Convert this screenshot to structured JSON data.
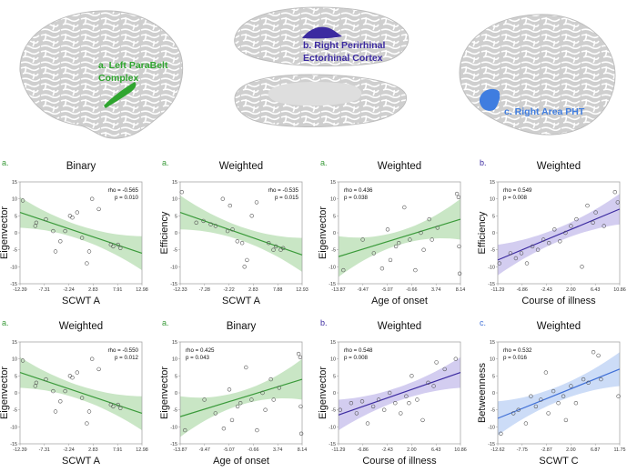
{
  "colors": {
    "green": "#3a9a3a",
    "green_band": "#c9e6c5",
    "purple": "#3b2aa0",
    "purple_band": "#d3cdf0",
    "blue": "#3f6fd6",
    "blue_band": "#ccdcf7",
    "brain": "#cfcfcf",
    "gyri": "#ffffff"
  },
  "regions": [
    {
      "label_line1": "a. Left ParaBelt",
      "label_line2": "Complex",
      "color": "#2fa52f"
    },
    {
      "label_line1": "b. Right Perirhinal",
      "label_line2": "Ectorhinal Cortex",
      "color": "#3b2aa0"
    },
    {
      "label_line1": "c. Right Area PHT",
      "label_line2": "",
      "color": "#3f7de0"
    }
  ],
  "chart_data": [
    {
      "type": "scatter",
      "letter": "a.",
      "color_key": "green",
      "title": "Binary",
      "ylabel": "Eigenvector",
      "xlabel": "SCWT A",
      "x_ticks": [
        "-12.39",
        "-7.31",
        "-2.24",
        "2.83",
        "7.91",
        "12.98"
      ],
      "xlim": [
        -12.39,
        12.98
      ],
      "y_ticks": [
        "15",
        "10",
        "5",
        "0",
        "-5",
        "-10",
        "-15"
      ],
      "ylim": [
        -15,
        15
      ],
      "stat_rho": "rho = -0.565",
      "stat_p": "p = 0.010",
      "stat_pos": "top-right",
      "fit": {
        "y_start": 6.0,
        "y_end": -6.0,
        "band_start": 4.5,
        "band_mid": 2.0,
        "band_end": 5.0
      },
      "points": [
        [
          -11.8,
          9.5
        ],
        [
          -9.2,
          2.0
        ],
        [
          -9.0,
          3.0
        ],
        [
          -7.0,
          4.0
        ],
        [
          -5.5,
          0.5
        ],
        [
          -5.0,
          -5.5
        ],
        [
          -4.0,
          -2.5
        ],
        [
          -3.0,
          0.5
        ],
        [
          -2.0,
          5.0
        ],
        [
          -1.5,
          4.5
        ],
        [
          -0.5,
          6.0
        ],
        [
          0.5,
          -1.5
        ],
        [
          1.5,
          -9.0
        ],
        [
          2.0,
          -5.5
        ],
        [
          2.6,
          10.0
        ],
        [
          4.0,
          7.0
        ],
        [
          6.5,
          -3.5
        ],
        [
          7.0,
          -4.0
        ],
        [
          8.0,
          -3.5
        ],
        [
          8.5,
          -4.5
        ]
      ]
    },
    {
      "type": "scatter",
      "letter": "a.",
      "color_key": "green",
      "title": "Weighted",
      "ylabel": "Efficiency",
      "xlabel": "SCWT A",
      "x_ticks": [
        "-12.33",
        "-7.28",
        "-2.22",
        "2.83",
        "7.88",
        "12.93"
      ],
      "xlim": [
        -12.33,
        12.93
      ],
      "y_ticks": [
        "15",
        "10",
        "5",
        "0",
        "-5",
        "-10",
        "-15"
      ],
      "ylim": [
        -15,
        15
      ],
      "stat_rho": "rho = -0.535",
      "stat_p": "p = 0.015",
      "stat_pos": "top-right",
      "fit": {
        "y_start": 6.0,
        "y_end": -6.5,
        "band_start": 5.0,
        "band_mid": 2.0,
        "band_end": 5.0
      },
      "points": [
        [
          -12.0,
          12.0
        ],
        [
          -9.0,
          3.0
        ],
        [
          -7.5,
          3.5
        ],
        [
          -6.0,
          2.5
        ],
        [
          -5.0,
          2.0
        ],
        [
          -3.5,
          10.0
        ],
        [
          -2.5,
          0.5
        ],
        [
          -2.0,
          8.0
        ],
        [
          -1.5,
          1.0
        ],
        [
          -0.5,
          -2.5
        ],
        [
          0.5,
          -3.0
        ],
        [
          1.0,
          -10.0
        ],
        [
          1.5,
          -8.0
        ],
        [
          2.5,
          5.0
        ],
        [
          3.5,
          9.0
        ],
        [
          6.0,
          -3.0
        ],
        [
          7.0,
          -5.0
        ],
        [
          7.5,
          -4.0
        ],
        [
          8.5,
          -5.0
        ],
        [
          9.0,
          -4.5
        ]
      ]
    },
    {
      "type": "scatter",
      "letter": "a.",
      "color_key": "green",
      "title": "Weighted",
      "ylabel": "Eigenvector",
      "xlabel": "Age of onset",
      "x_ticks": [
        "-13.87",
        "-9.47",
        "-5.07",
        "-0.66",
        "3.74",
        "8.14"
      ],
      "xlim": [
        -13.87,
        8.14
      ],
      "y_ticks": [
        "15",
        "10",
        "5",
        "0",
        "-5",
        "-10",
        "-15"
      ],
      "ylim": [
        -15,
        15
      ],
      "stat_rho": "rho = 0.436",
      "stat_p": "p = 0.038",
      "stat_pos": "top-left",
      "fit": {
        "y_start": -7.0,
        "y_end": 4.0,
        "band_start": 6.0,
        "band_mid": 2.0,
        "band_end": 6.0
      },
      "points": [
        [
          -13.0,
          -11.0
        ],
        [
          -9.5,
          -2.0
        ],
        [
          -7.5,
          -6.0
        ],
        [
          -6.0,
          -10.5
        ],
        [
          -5.0,
          1.0
        ],
        [
          -4.5,
          -8.0
        ],
        [
          -3.5,
          -4.0
        ],
        [
          -3.0,
          -3.0
        ],
        [
          -2.0,
          7.5
        ],
        [
          -1.0,
          -2.0
        ],
        [
          0.0,
          -11.0
        ],
        [
          1.0,
          0.0
        ],
        [
          1.5,
          -5.0
        ],
        [
          2.5,
          4.0
        ],
        [
          3.0,
          -2.0
        ],
        [
          4.0,
          1.5
        ],
        [
          7.5,
          11.5
        ],
        [
          7.8,
          10.5
        ],
        [
          7.9,
          -4.0
        ],
        [
          8.0,
          -12.0
        ]
      ]
    },
    {
      "type": "scatter",
      "letter": "b.",
      "color_key": "purple",
      "title": "Weighted",
      "ylabel": "Efficiency",
      "xlabel": "Course of illness",
      "x_ticks": [
        "-11.29",
        "-6.86",
        "-2.43",
        "2.00",
        "6.43",
        "10.86"
      ],
      "xlim": [
        -11.29,
        10.86
      ],
      "y_ticks": [
        "15",
        "10",
        "5",
        "0",
        "-5",
        "-10",
        "-15"
      ],
      "ylim": [
        -15,
        15
      ],
      "stat_rho": "rho = 0.549",
      "stat_p": "p = 0.008",
      "stat_pos": "top-left",
      "fit": {
        "y_start": -8.0,
        "y_end": 7.0,
        "band_start": 4.5,
        "band_mid": 2.0,
        "band_end": 4.5
      },
      "points": [
        [
          -11.0,
          -9.0
        ],
        [
          -9.0,
          -6.0
        ],
        [
          -8.0,
          -7.5
        ],
        [
          -7.0,
          -6.0
        ],
        [
          -6.0,
          -9.0
        ],
        [
          -5.0,
          -4.0
        ],
        [
          -4.0,
          -5.0
        ],
        [
          -3.0,
          -2.0
        ],
        [
          -2.0,
          -3.0
        ],
        [
          -1.0,
          1.0
        ],
        [
          0.0,
          -2.5
        ],
        [
          1.0,
          0.0
        ],
        [
          2.0,
          2.0
        ],
        [
          3.0,
          4.0
        ],
        [
          4.0,
          -10.0
        ],
        [
          5.0,
          8.0
        ],
        [
          6.0,
          3.0
        ],
        [
          6.5,
          6.0
        ],
        [
          8.0,
          2.0
        ],
        [
          10.0,
          12.0
        ],
        [
          10.5,
          9.0
        ]
      ]
    },
    {
      "type": "scatter",
      "letter": "a.",
      "color_key": "green",
      "title": "Weighted",
      "ylabel": "Eigenvector",
      "xlabel": "SCWT A",
      "x_ticks": [
        "-12.39",
        "-7.31",
        "-2.24",
        "2.83",
        "7.91",
        "12.98"
      ],
      "xlim": [
        -12.39,
        12.98
      ],
      "y_ticks": [
        "15",
        "10",
        "5",
        "0",
        "-5",
        "-10",
        "-15"
      ],
      "ylim": [
        -15,
        15
      ],
      "stat_rho": "rho = -0.550",
      "stat_p": "p = 0.012",
      "stat_pos": "top-right",
      "fit": {
        "y_start": 6.0,
        "y_end": -6.0,
        "band_start": 4.5,
        "band_mid": 2.0,
        "band_end": 5.0
      },
      "points": [
        [
          -11.8,
          9.5
        ],
        [
          -9.2,
          2.0
        ],
        [
          -9.0,
          3.0
        ],
        [
          -7.0,
          4.0
        ],
        [
          -5.5,
          0.5
        ],
        [
          -5.0,
          -5.5
        ],
        [
          -4.0,
          -2.5
        ],
        [
          -3.0,
          0.5
        ],
        [
          -2.0,
          5.0
        ],
        [
          -1.5,
          4.5
        ],
        [
          -0.5,
          6.0
        ],
        [
          0.5,
          -1.5
        ],
        [
          1.5,
          -9.0
        ],
        [
          2.0,
          -5.5
        ],
        [
          2.6,
          10.0
        ],
        [
          4.0,
          7.0
        ],
        [
          6.5,
          -3.5
        ],
        [
          7.0,
          -4.0
        ],
        [
          8.0,
          -3.5
        ],
        [
          8.5,
          -4.5
        ]
      ]
    },
    {
      "type": "scatter",
      "letter": "a.",
      "color_key": "green",
      "title": "Binary",
      "ylabel": "Eigenvector",
      "xlabel": "Age of onset",
      "x_ticks": [
        "-13.87",
        "-9.47",
        "-5.07",
        "-0.66",
        "3.74",
        "8.14"
      ],
      "xlim": [
        -13.87,
        8.14
      ],
      "y_ticks": [
        "15",
        "10",
        "5",
        "0",
        "-5",
        "-10",
        "-15"
      ],
      "ylim": [
        -15,
        15
      ],
      "stat_rho": "rho = 0.425",
      "stat_p": "p = 0.043",
      "stat_pos": "top-left",
      "fit": {
        "y_start": -7.0,
        "y_end": 4.0,
        "band_start": 6.0,
        "band_mid": 2.0,
        "band_end": 6.0
      },
      "points": [
        [
          -13.0,
          -11.0
        ],
        [
          -9.5,
          -2.0
        ],
        [
          -7.5,
          -6.0
        ],
        [
          -6.0,
          -10.5
        ],
        [
          -5.0,
          1.0
        ],
        [
          -4.5,
          -8.0
        ],
        [
          -3.5,
          -4.0
        ],
        [
          -3.0,
          -3.0
        ],
        [
          -2.0,
          7.5
        ],
        [
          -1.0,
          -2.0
        ],
        [
          0.0,
          -11.0
        ],
        [
          1.0,
          0.0
        ],
        [
          1.5,
          -5.0
        ],
        [
          2.5,
          4.0
        ],
        [
          3.0,
          -2.0
        ],
        [
          4.0,
          1.5
        ],
        [
          7.5,
          11.5
        ],
        [
          7.8,
          10.5
        ],
        [
          7.9,
          -4.0
        ],
        [
          8.0,
          -12.0
        ]
      ]
    },
    {
      "type": "scatter",
      "letter": "b.",
      "color_key": "purple",
      "title": "Weighted",
      "ylabel": "Eigenvector",
      "xlabel": "Course of illness",
      "x_ticks": [
        "-11.29",
        "-6.86",
        "-2.43",
        "2.00",
        "6.43",
        "10.86"
      ],
      "xlim": [
        -11.29,
        10.86
      ],
      "y_ticks": [
        "15",
        "10",
        "5",
        "0",
        "-5",
        "-10",
        "-15"
      ],
      "ylim": [
        -15,
        15
      ],
      "stat_rho": "rho = 0.548",
      "stat_p": "p = 0.008",
      "stat_pos": "top-left",
      "fit": {
        "y_start": -6.5,
        "y_end": 6.0,
        "band_start": 4.5,
        "band_mid": 2.0,
        "band_end": 4.5
      },
      "points": [
        [
          -11.0,
          -5.0
        ],
        [
          -9.0,
          -3.0
        ],
        [
          -8.0,
          -6.0
        ],
        [
          -7.0,
          -2.5
        ],
        [
          -6.0,
          -9.0
        ],
        [
          -5.0,
          -4.0
        ],
        [
          -4.0,
          -2.0
        ],
        [
          -3.0,
          -5.0
        ],
        [
          -2.0,
          0.0
        ],
        [
          -1.0,
          -3.0
        ],
        [
          0.0,
          -6.0
        ],
        [
          1.0,
          -1.0
        ],
        [
          1.5,
          -3.0
        ],
        [
          2.0,
          5.0
        ],
        [
          3.0,
          -2.0
        ],
        [
          4.0,
          -8.0
        ],
        [
          5.0,
          3.0
        ],
        [
          6.0,
          2.0
        ],
        [
          6.5,
          9.0
        ],
        [
          8.0,
          7.0
        ],
        [
          10.0,
          10.0
        ]
      ]
    },
    {
      "type": "scatter",
      "letter": "c.",
      "color_key": "blue",
      "title": "Weighted",
      "ylabel": "Betweenness",
      "xlabel": "SCWT C",
      "x_ticks": [
        "-12.62",
        "-7.75",
        "-2.87",
        "2.00",
        "6.87",
        "11.75"
      ],
      "xlim": [
        -12.62,
        11.75
      ],
      "y_ticks": [
        "15",
        "10",
        "5",
        "0",
        "-5",
        "-10",
        "-15"
      ],
      "ylim": [
        -15,
        15
      ],
      "stat_rho": "rho = 0.532",
      "stat_p": "p = 0.016",
      "stat_pos": "top-left",
      "fit": {
        "y_start": -7.5,
        "y_end": 7.0,
        "band_start": 5.0,
        "band_mid": 2.2,
        "band_end": 5.0
      },
      "points": [
        [
          -12.0,
          -12.0
        ],
        [
          -9.5,
          -6.0
        ],
        [
          -8.5,
          -5.0
        ],
        [
          -7.0,
          -9.0
        ],
        [
          -6.0,
          -1.0
        ],
        [
          -5.0,
          -4.0
        ],
        [
          -4.0,
          -2.0
        ],
        [
          -3.0,
          6.0
        ],
        [
          -2.5,
          -6.0
        ],
        [
          -1.5,
          0.5
        ],
        [
          -0.5,
          -3.0
        ],
        [
          0.5,
          -1.0
        ],
        [
          1.0,
          -8.0
        ],
        [
          2.0,
          2.0
        ],
        [
          3.0,
          -3.0
        ],
        [
          4.5,
          4.0
        ],
        [
          5.5,
          3.0
        ],
        [
          6.5,
          12.0
        ],
        [
          7.5,
          11.0
        ],
        [
          8.0,
          4.0
        ],
        [
          11.5,
          -1.0
        ]
      ]
    }
  ]
}
